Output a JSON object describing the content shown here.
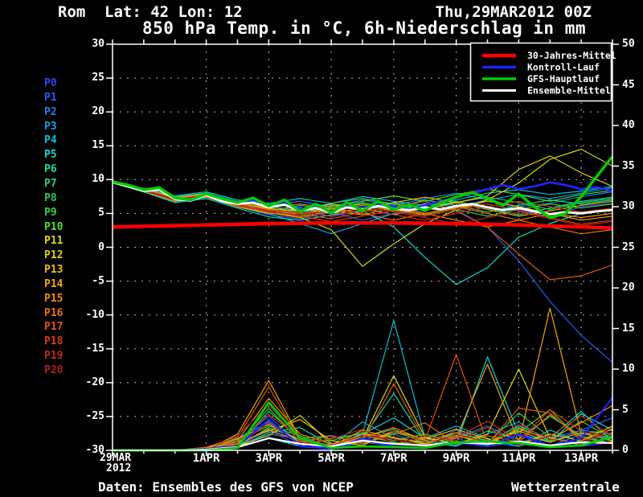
{
  "header": {
    "location": "Rom",
    "lat_lon": "Lat: 42 Lon: 12",
    "datetime": "Thu,29MAR2012 00Z"
  },
  "footer": {
    "left": "Daten: Ensembles des GFS von NCEP",
    "right": "Wetterzentrale"
  },
  "chart_data": {
    "type": "line",
    "title": "850 hPa Temp. in °C, 6h-Niederschlag in mm",
    "grid": true,
    "legend_position": "top-right",
    "x_axis": {
      "start_label": "29MAR",
      "start_year": "2012",
      "total_days": 16,
      "tick_days": [
        3,
        5,
        7,
        9,
        11,
        13,
        15
      ],
      "tick_labels": [
        "1APR",
        "3APR",
        "5APR",
        "7APR",
        "9APR",
        "11APR",
        "13APR"
      ]
    },
    "y_left": {
      "min": -30,
      "max": 30,
      "step": 5,
      "unit": "°C"
    },
    "y_right": {
      "min": 0,
      "max": 50,
      "step": 5,
      "unit": "mm"
    },
    "legend": [
      {
        "label": "30-Jahres-Mittel",
        "color": "#ff0000",
        "thickness": 4.5
      },
      {
        "label": "Kontroll-Lauf",
        "color": "#2222ff",
        "thickness": 3.5
      },
      {
        "label": "GFS-Hauptlauf",
        "color": "#00cc00",
        "thickness": 3.5
      },
      {
        "label": "Ensemble-Mittel",
        "color": "#ffffff",
        "thickness": 3
      }
    ],
    "main_series": {
      "mean30y": {
        "name": "30-Jahres-Mittel",
        "color": "#ff0000",
        "width": 4.5,
        "temp_step_days": 1,
        "temp": [
          3.0,
          3.1,
          3.2,
          3.3,
          3.4,
          3.5,
          3.55,
          3.6,
          3.6,
          3.6,
          3.55,
          3.5,
          3.4,
          3.3,
          3.15,
          3.0,
          2.85
        ]
      },
      "control": {
        "name": "Kontroll-Lauf",
        "color": "#2222ff",
        "width": 2.8,
        "temp_step_days": 0.5,
        "temp": [
          9.6,
          9.1,
          8.4,
          8.6,
          7.2,
          6.8,
          7.8,
          7.0,
          6.5,
          6.9,
          6.0,
          6.5,
          5.6,
          6.2,
          5.2,
          6.0,
          5.8,
          6.4,
          6.0,
          5.6,
          6.2,
          6.8,
          7.4,
          8.0,
          8.6,
          9.2,
          8.6,
          9.0,
          9.6,
          9.2,
          8.6,
          8.9,
          8.3
        ],
        "precip_step_days": 1,
        "precip": [
          0,
          0,
          0,
          0.2,
          0.5,
          3.8,
          0.5,
          0.2,
          1.5,
          0.5,
          0.3,
          1.0,
          0.5,
          2.0,
          0.5,
          1.5,
          6.5
        ]
      },
      "gfs_main": {
        "name": "GFS-Hauptlauf",
        "color": "#00cc00",
        "width": 3.5,
        "temp_step_days": 0.5,
        "temp": [
          9.7,
          9.2,
          8.5,
          8.8,
          7.3,
          7.0,
          7.9,
          7.2,
          6.6,
          7.3,
          6.1,
          7.0,
          5.3,
          6.4,
          5.1,
          6.6,
          5.4,
          6.8,
          5.6,
          6.3,
          5.4,
          6.6,
          7.4,
          8.1,
          7.2,
          6.2,
          7.9,
          6.0,
          4.4,
          5.0,
          7.5,
          10.5,
          13.4
        ],
        "precip_step_days": 1,
        "precip": [
          0,
          0,
          0,
          0,
          0.3,
          5.9,
          1.5,
          0.3,
          0.5,
          0.4,
          0.3,
          1.0,
          1.1,
          0.9,
          0.4,
          0.6,
          1.6
        ]
      },
      "ens_mean": {
        "name": "Ensemble-Mittel",
        "color": "#ffffff",
        "width": 2.8,
        "temp_step_days": 0.5,
        "temp": [
          9.6,
          9.0,
          8.3,
          8.5,
          7.1,
          6.9,
          7.7,
          6.8,
          6.4,
          6.6,
          5.9,
          6.3,
          5.4,
          5.8,
          5.1,
          5.9,
          5.6,
          6.1,
          5.7,
          5.5,
          5.9,
          5.6,
          6.1,
          6.4,
          5.9,
          5.5,
          5.8,
          5.3,
          4.9,
          5.2,
          5.0,
          5.3,
          5.5
        ],
        "precip_step_days": 1,
        "precip": [
          0,
          0,
          0,
          0.1,
          0.4,
          1.5,
          0.8,
          0.5,
          1.2,
          0.8,
          0.6,
          1.0,
          0.8,
          1.1,
          0.6,
          1.0,
          0.9
        ]
      }
    },
    "members": [
      {
        "name": "P0",
        "color": "#3c3cff",
        "temp": [
          9.6,
          8.5,
          7.2,
          7.8,
          6.5,
          5.5,
          6.0,
          4.5,
          5.5,
          6.5,
          5.0,
          6.0,
          7.0,
          5.5,
          4.5,
          6.0,
          6.5
        ],
        "precip": [
          0,
          0,
          0,
          0,
          0.5,
          2.5,
          0.5,
          0.2,
          1.0,
          0.5,
          0.3,
          1.5,
          0.5,
          1.0,
          2.0,
          0.5,
          1.0
        ]
      },
      {
        "name": "P1",
        "color": "#2a5cf5",
        "temp": [
          9.6,
          8.3,
          6.8,
          7.4,
          6.0,
          4.8,
          4.2,
          5.2,
          4.0,
          5.0,
          6.0,
          5.5,
          3.0,
          -2.0,
          -8.0,
          -13.0,
          -17.0
        ],
        "precip": [
          0,
          0,
          0,
          0.3,
          1.0,
          4.2,
          0.8,
          0.3,
          2.0,
          1.0,
          0.5,
          2.5,
          1.0,
          0.5,
          1.5,
          2.5,
          4.0
        ]
      },
      {
        "name": "P2",
        "color": "#1e7eea",
        "temp": [
          9.5,
          8.6,
          7.5,
          8.0,
          6.8,
          6.2,
          6.8,
          6.0,
          7.0,
          6.2,
          7.2,
          8.0,
          7.0,
          6.0,
          6.5,
          7.5,
          8.2
        ],
        "precip": [
          0,
          0,
          0,
          0,
          0.5,
          2.0,
          1.5,
          0.5,
          1.0,
          2.0,
          0.5,
          1.5,
          3.0,
          1.0,
          0.5,
          2.0,
          1.5
        ]
      },
      {
        "name": "P3",
        "color": "#14a0e0",
        "temp": [
          9.5,
          8.4,
          7.0,
          7.6,
          6.2,
          5.0,
          3.5,
          2.0,
          3.5,
          5.0,
          6.5,
          6.0,
          7.0,
          7.8,
          7.2,
          8.0,
          8.8
        ],
        "precip": [
          0,
          0,
          0,
          0.2,
          1.5,
          3.5,
          1.0,
          0.5,
          3.5,
          1.5,
          1.0,
          0.5,
          2.0,
          3.5,
          1.0,
          2.5,
          2.0
        ]
      },
      {
        "name": "P4",
        "color": "#0cc0d8",
        "temp": [
          9.7,
          8.7,
          7.6,
          8.2,
          7.0,
          6.5,
          7.2,
          6.5,
          7.5,
          6.8,
          6.2,
          7.0,
          8.0,
          8.5,
          7.8,
          8.3,
          9.0
        ],
        "precip": [
          0,
          0,
          0,
          0,
          0.5,
          1.5,
          0.5,
          1.5,
          2.0,
          16.0,
          1.5,
          3.0,
          1.5,
          0.5,
          2.5,
          1.0,
          2.0
        ]
      },
      {
        "name": "P5",
        "color": "#0cd8cc",
        "temp": [
          9.5,
          8.2,
          6.6,
          7.2,
          5.8,
          4.5,
          4.0,
          4.8,
          5.4,
          3.0,
          -1.5,
          -5.5,
          -3.0,
          1.5,
          3.5,
          5.0,
          5.8
        ],
        "precip": [
          0,
          0,
          0,
          0.2,
          0.8,
          2.5,
          1.2,
          0.5,
          2.0,
          4.0,
          1.5,
          0.8,
          11.5,
          2.0,
          1.0,
          4.5,
          2.5
        ]
      },
      {
        "name": "P6",
        "color": "#10dcaa",
        "temp": [
          9.6,
          8.5,
          7.3,
          7.9,
          6.6,
          5.8,
          5.2,
          6.2,
          5.6,
          6.6,
          5.8,
          6.8,
          5.8,
          4.8,
          5.8,
          6.8,
          7.4
        ],
        "precip": [
          0,
          0,
          0,
          0,
          0.4,
          2.2,
          2.8,
          0.6,
          1.5,
          7.0,
          1.0,
          2.0,
          1.0,
          3.0,
          1.5,
          4.8,
          1.0
        ]
      },
      {
        "name": "P7",
        "color": "#1cd482",
        "temp": [
          9.5,
          8.4,
          7.1,
          7.7,
          6.4,
          5.4,
          6.2,
          5.6,
          6.6,
          5.8,
          7.0,
          6.2,
          5.2,
          6.2,
          7.0,
          6.4,
          7.0
        ],
        "precip": [
          0,
          0,
          0,
          0.1,
          0.6,
          4.8,
          1.5,
          1.8,
          0.8,
          2.2,
          1.2,
          0.6,
          2.4,
          1.4,
          4.2,
          1.8,
          0.8
        ]
      },
      {
        "name": "P8",
        "color": "#28ca5a",
        "temp": [
          9.6,
          8.6,
          7.4,
          8.0,
          6.7,
          6.0,
          5.5,
          6.5,
          7.2,
          6.4,
          5.6,
          6.6,
          7.4,
          6.6,
          5.6,
          6.6,
          7.2
        ],
        "precip": [
          0,
          0,
          0,
          0,
          1.2,
          3.0,
          1.8,
          0.4,
          1.6,
          2.6,
          0.8,
          1.8,
          0.8,
          4.6,
          1.6,
          0.6,
          1.8
        ]
      },
      {
        "name": "P9",
        "color": "#36d03c",
        "temp": [
          9.5,
          8.3,
          6.9,
          7.5,
          6.1,
          5.2,
          4.6,
          5.6,
          6.2,
          5.4,
          6.4,
          5.6,
          4.6,
          5.6,
          6.4,
          5.8,
          6.4
        ],
        "precip": [
          0,
          0,
          0,
          0.2,
          0.8,
          5.2,
          1.0,
          1.2,
          2.2,
          1.2,
          2.0,
          1.0,
          0.6,
          2.8,
          1.2,
          3.6,
          1.4
        ]
      },
      {
        "name": "P10",
        "color": "#52de28",
        "temp": [
          9.6,
          8.5,
          7.2,
          7.8,
          6.5,
          5.6,
          5.0,
          6.0,
          6.8,
          7.6,
          6.8,
          7.8,
          8.6,
          7.8,
          6.8,
          7.8,
          8.4
        ],
        "precip": [
          0,
          0,
          0,
          0,
          0.5,
          2.8,
          1.4,
          0.6,
          1.8,
          1.0,
          0.8,
          2.2,
          1.2,
          2.2,
          5.0,
          1.2,
          2.6
        ]
      },
      {
        "name": "P11",
        "color": "#d8d814",
        "temp": [
          9.5,
          8.4,
          7.0,
          7.6,
          6.3,
          5.3,
          4.4,
          2.6,
          -2.8,
          0.5,
          3.5,
          5.5,
          7.0,
          9.5,
          13.0,
          14.5,
          12.0
        ],
        "precip": [
          0,
          0,
          0,
          0.2,
          0.6,
          1.8,
          4.3,
          0.8,
          1.4,
          9.2,
          1.6,
          0.8,
          2.0,
          10.0,
          1.5,
          0.8,
          1.6
        ]
      },
      {
        "name": "P12",
        "color": "#e2ca10",
        "temp": [
          9.6,
          8.6,
          7.3,
          7.9,
          6.6,
          5.7,
          5.4,
          6.4,
          5.8,
          4.8,
          5.8,
          6.6,
          7.6,
          11.5,
          13.5,
          11.0,
          9.0
        ],
        "precip": [
          0,
          0,
          0,
          0,
          1.0,
          2.4,
          3.8,
          1.2,
          0.6,
          2.4,
          1.4,
          2.6,
          1.4,
          0.8,
          2.0,
          1.2,
          3.0
        ]
      },
      {
        "name": "P13",
        "color": "#ecba0c",
        "temp": [
          9.5,
          8.3,
          6.8,
          7.4,
          6.0,
          5.0,
          5.8,
          5.0,
          5.8,
          6.6,
          7.4,
          6.6,
          5.6,
          4.6,
          5.4,
          6.2,
          6.8
        ],
        "precip": [
          0,
          0,
          0,
          0.3,
          1.4,
          3.2,
          1.2,
          0.6,
          2.0,
          1.6,
          0.8,
          1.8,
          1.0,
          2.4,
          1.0,
          2.2,
          1.2
        ]
      },
      {
        "name": "P14",
        "color": "#f2a408",
        "temp": [
          9.6,
          8.5,
          7.1,
          7.7,
          6.4,
          5.5,
          4.8,
          5.8,
          6.4,
          5.6,
          4.8,
          5.8,
          6.8,
          6.0,
          5.0,
          4.0,
          4.6
        ],
        "precip": [
          0,
          0,
          0,
          0,
          2.0,
          8.6,
          1.5,
          0.5,
          2.5,
          1.5,
          1.0,
          1.5,
          10.6,
          1.0,
          17.5,
          2.0,
          2.5
        ]
      },
      {
        "name": "P15",
        "color": "#f48c06",
        "temp": [
          9.5,
          8.4,
          6.9,
          7.5,
          6.2,
          5.1,
          4.4,
          5.4,
          4.8,
          5.8,
          5.0,
          4.0,
          3.0,
          4.0,
          5.0,
          4.4,
          5.0
        ],
        "precip": [
          0,
          0,
          0,
          0.2,
          1.2,
          6.4,
          2.0,
          0.8,
          1.6,
          2.8,
          1.2,
          2.2,
          0.8,
          2.6,
          1.4,
          3.4,
          5.5
        ]
      },
      {
        "name": "P16",
        "color": "#f07004",
        "temp": [
          9.6,
          8.6,
          7.2,
          7.8,
          6.5,
          5.9,
          6.4,
          5.8,
          5.0,
          4.0,
          5.0,
          6.0,
          5.0,
          4.0,
          3.0,
          2.0,
          2.6
        ],
        "precip": [
          0,
          0,
          0,
          0,
          0.8,
          2.6,
          1.0,
          1.8,
          0.8,
          2.0,
          3.4,
          0.8,
          1.8,
          1.0,
          4.4,
          1.6,
          0.8
        ]
      },
      {
        "name": "P17",
        "color": "#e45604",
        "temp": [
          9.5,
          8.5,
          7.0,
          7.6,
          6.3,
          5.6,
          5.0,
          4.2,
          5.2,
          6.0,
          6.8,
          5.4,
          3.0,
          -1.0,
          -4.8,
          -4.2,
          -2.6
        ],
        "precip": [
          0,
          0,
          0,
          0.4,
          1.6,
          7.8,
          1.2,
          0.6,
          1.0,
          8.2,
          1.2,
          11.8,
          0.8,
          5.2,
          4.6,
          1.2,
          2.2
        ]
      },
      {
        "name": "P18",
        "color": "#d63c08",
        "temp": [
          9.5,
          8.4,
          6.9,
          7.5,
          6.1,
          5.3,
          4.6,
          3.8,
          4.6,
          5.4,
          4.6,
          5.6,
          6.4,
          5.4,
          4.4,
          3.4,
          4.0
        ],
        "precip": [
          0,
          0,
          0,
          0,
          1.0,
          4.4,
          1.6,
          0.4,
          1.2,
          2.4,
          1.0,
          1.6,
          3.6,
          1.2,
          5.0,
          2.4,
          1.0
        ]
      },
      {
        "name": "P19",
        "color": "#c42a10",
        "temp": [
          9.6,
          8.5,
          7.1,
          7.7,
          6.4,
          5.4,
          5.2,
          4.6,
          5.6,
          4.8,
          4.0,
          5.0,
          6.0,
          6.8,
          6.0,
          5.2,
          5.8
        ],
        "precip": [
          0,
          0,
          0,
          0.2,
          0.6,
          3.4,
          0.8,
          1.4,
          2.6,
          0.8,
          1.8,
          1.2,
          2.8,
          0.6,
          1.8,
          4.2,
          1.8
        ]
      },
      {
        "name": "P20",
        "color": "#b01e1e",
        "temp": [
          9.5,
          8.3,
          7.0,
          7.6,
          6.2,
          5.2,
          4.8,
          5.4,
          6.0,
          5.2,
          4.4,
          3.4,
          4.4,
          5.2,
          4.2,
          3.2,
          3.8
        ],
        "precip": [
          0,
          0,
          0,
          0,
          1.8,
          5.6,
          1.0,
          0.6,
          1.8,
          1.4,
          0.6,
          2.0,
          1.0,
          3.2,
          1.4,
          0.8,
          2.8
        ]
      }
    ]
  }
}
